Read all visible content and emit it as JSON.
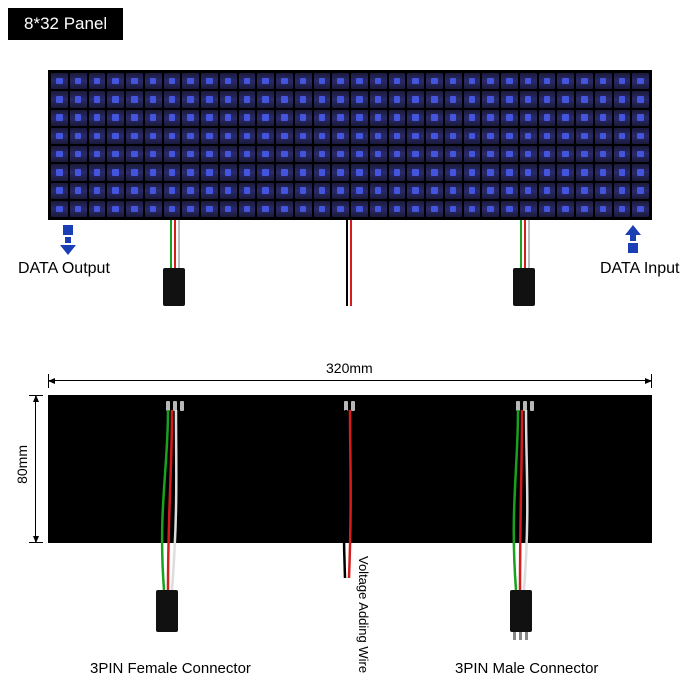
{
  "title": "8*32 Panel",
  "labels": {
    "data_output": "DATA Output",
    "data_input": "DATA Input",
    "voltage_wire": "Voltage Adding Wire",
    "female_conn": "3PIN Female Connector",
    "male_conn": "3PIN Male Connector"
  },
  "dimensions": {
    "width": "320mm",
    "height": "80mm"
  },
  "panel": {
    "rows": 8,
    "cols": 32,
    "led_color": "#2a2a6a",
    "board_color": "#000000"
  },
  "wire_colors": {
    "green": "#18a21e",
    "red": "#d41e1e",
    "white": "#e8e8e8",
    "black": "#000000"
  },
  "arrow_color": "#1a3fb5",
  "text_color": "#000000",
  "background": "#ffffff"
}
